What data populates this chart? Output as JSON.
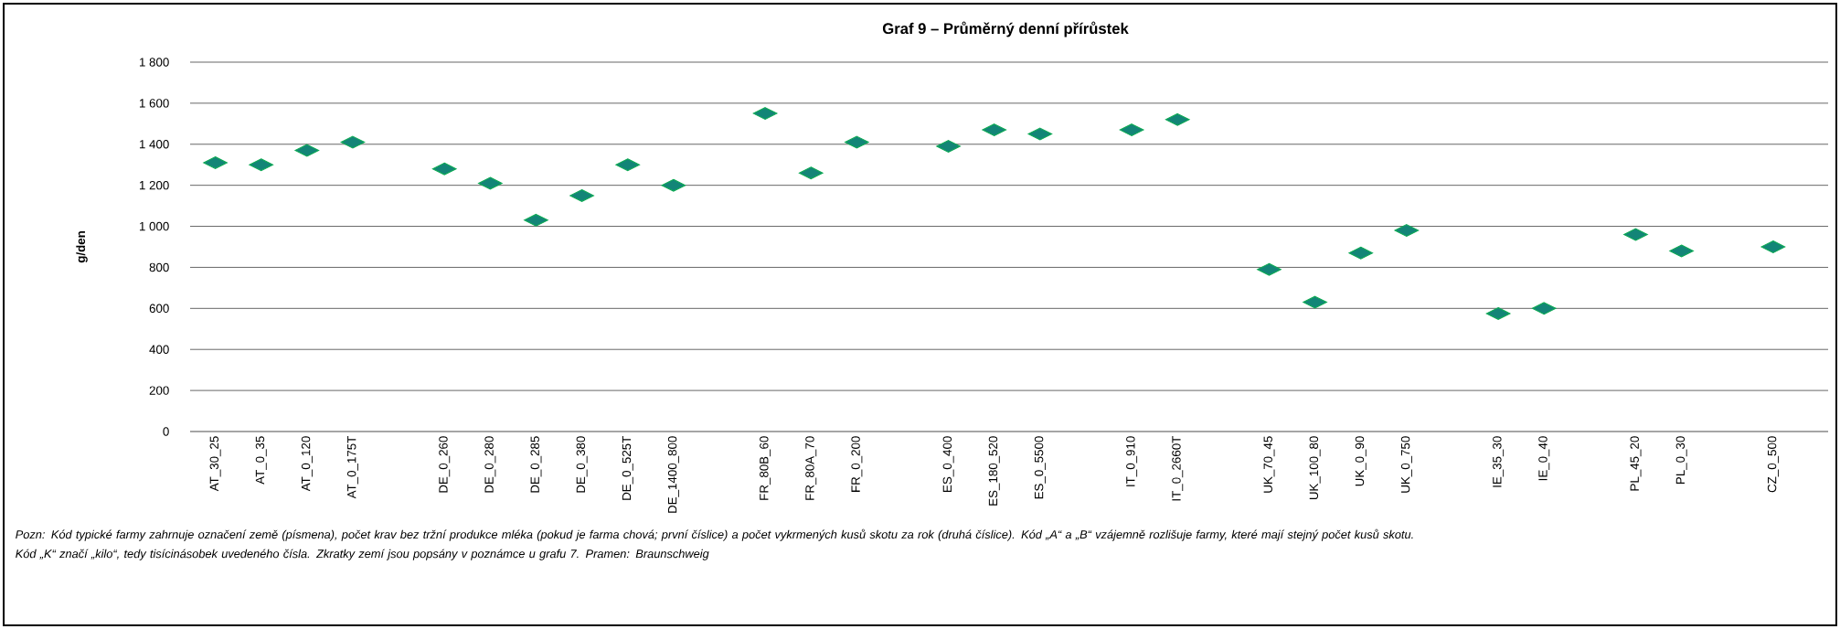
{
  "chart_data": {
    "type": "scatter",
    "title": "Graf 9 – Průměrný denní přírůstek",
    "ylabel": "g/den",
    "categories": [
      "AT_30_25",
      "AT_0_35",
      "AT_0_120",
      "AT_0_175T",
      null,
      "DE_0_260",
      "DE_0_280",
      "DE_0_285",
      "DE_0_380",
      "DE_0_525T",
      "DE_1400_800",
      null,
      "FR_80B_60",
      "FR_80A_70",
      "FR_0_200",
      null,
      "ES_0_400",
      "ES_180_520",
      "ES_0_5500",
      null,
      "IT_0_910",
      "IT_0_2660T",
      null,
      "UK_70_45",
      "UK_100_80",
      "UK_0_90",
      "UK_0_750",
      null,
      "IE_35_30",
      "IE_0_40",
      null,
      "PL_45_20",
      "PL_0_30",
      null,
      "CZ_0_500"
    ],
    "values": [
      1310,
      1300,
      1370,
      1410,
      null,
      1280,
      1210,
      1030,
      1150,
      1300,
      1200,
      null,
      1550,
      1260,
      1410,
      null,
      1390,
      1470,
      1450,
      null,
      1470,
      1520,
      null,
      790,
      630,
      870,
      980,
      null,
      575,
      600,
      null,
      960,
      880,
      null,
      900
    ],
    "color": "#138577",
    "ylim": [
      0,
      1800
    ],
    "yticks": [
      0,
      200,
      400,
      600,
      800,
      {
        "value": 1000,
        "label": "1 000"
      },
      {
        "value": 1200,
        "label": "1 200"
      },
      {
        "value": 1400,
        "label": "1 400"
      },
      {
        "value": 1600,
        "label": "1 600"
      },
      {
        "value": 1800,
        "label": "1 800"
      }
    ],
    "grid": "y",
    "marker": "diamond",
    "annotations": [
      "Pozn: Kód typické farmy zahrnuje označení země (písmena), počet krav bez tržní produkce mléka (pokud je farma chová; první číslice) a počet vykrmených kusů skotu za rok (druhá číslice). Kód „A“ a „B“ vzájemně rozlišuje farmy, které mají stejný počet kusů skotu.",
      "Kód „K“ značí „kilo“, tedy tisícinásobek uvedeného čísla. Zkratky zemí jsou popsány v poznámce u grafu 7. Pramen: Braunschweig"
    ]
  }
}
